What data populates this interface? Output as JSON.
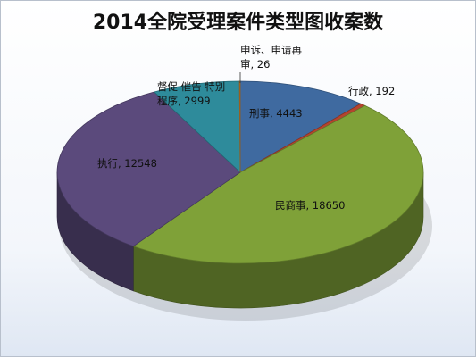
{
  "chart_data": {
    "type": "pie",
    "title": "2014全院受理案件类型图收案数",
    "slices": [
      {
        "label": "刑事",
        "value": 4443,
        "color": "#3f6aa0"
      },
      {
        "label": "行政",
        "value": 192,
        "color": "#b5442f"
      },
      {
        "label": "民商事",
        "value": 18650,
        "color": "#7fa138"
      },
      {
        "label": "执行",
        "value": 12548,
        "color": "#5b4a7c"
      },
      {
        "label": "督促 催告 特别程序",
        "value": 2999,
        "color": "#2e8b9b"
      },
      {
        "label": "申诉、申请再审",
        "value": 26,
        "color": "#d07f27"
      }
    ],
    "data_labels": [
      {
        "lines": [
          "刑事, 4443"
        ]
      },
      {
        "lines": [
          "行政, 192"
        ]
      },
      {
        "lines": [
          "民商事, 18650"
        ]
      },
      {
        "lines": [
          "执行, 12548"
        ]
      },
      {
        "lines": [
          "督促 催告 特别",
          "程序, 2999"
        ]
      },
      {
        "lines": [
          "申诉、申请再",
          "审, 26"
        ]
      }
    ]
  }
}
